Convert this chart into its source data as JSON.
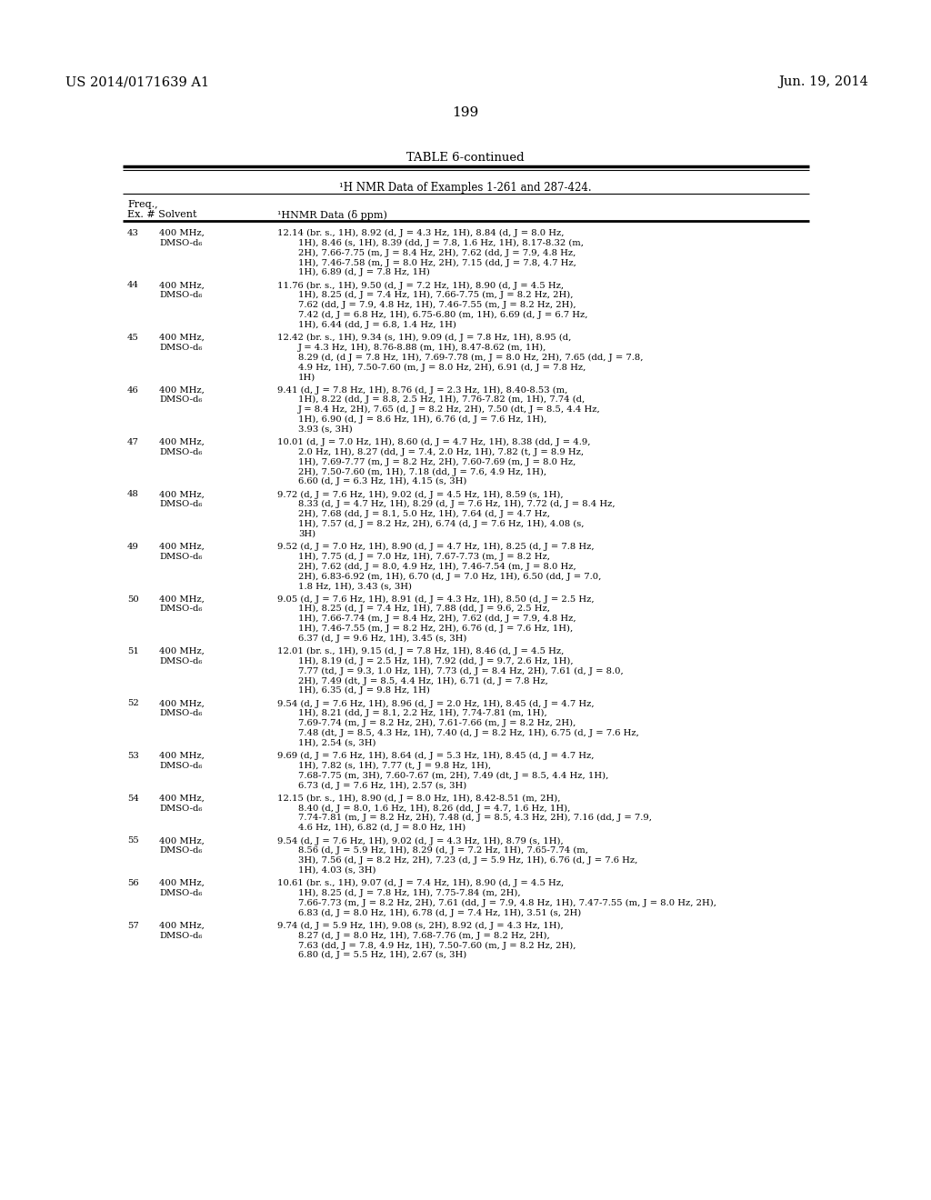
{
  "page_number": "199",
  "patent_number": "US 2014/0171639 A1",
  "patent_date": "Jun. 19, 2014",
  "table_title": "TABLE 6-continued",
  "table_subtitle": "¹H NMR Data of Examples 1-261 and 287-424.",
  "col2_header": "¹HNMR Data (δ ppm)",
  "background_color": "#ffffff",
  "text_color": "#000000",
  "entries": [
    {
      "ex": "43",
      "freq": "400 MHz,",
      "solvent": "DMSO-d₆",
      "line1": "12.14 (br. s., 1H), 8.92 (d, J = 4.3 Hz, 1H), 8.84 (d, J = 8.0 Hz,",
      "lines": [
        "1H), 8.46 (s, 1H), 8.39 (dd, J = 7.8, 1.6 Hz, 1H), 8.17-8.32 (m,",
        "2H), 7.66-7.75 (m, J = 8.4 Hz, 2H), 7.62 (dd, J = 7.9, 4.8 Hz,",
        "1H), 7.46-7.58 (m, J = 8.0 Hz, 2H), 7.15 (dd, J = 7.8, 4.7 Hz,",
        "1H), 6.89 (d, J = 7.8 Hz, 1H)"
      ]
    },
    {
      "ex": "44",
      "freq": "400 MHz,",
      "solvent": "DMSO-d₆",
      "line1": "11.76 (br. s., 1H), 9.50 (d, J = 7.2 Hz, 1H), 8.90 (d, J = 4.5 Hz,",
      "lines": [
        "1H), 8.25 (d, J = 7.4 Hz, 1H), 7.66-7.75 (m, J = 8.2 Hz, 2H),",
        "7.62 (dd, J = 7.9, 4.8 Hz, 1H), 7.46-7.55 (m, J = 8.2 Hz, 2H),",
        "7.42 (d, J = 6.8 Hz, 1H), 6.75-6.80 (m, 1H), 6.69 (d, J = 6.7 Hz,",
        "1H), 6.44 (dd, J = 6.8, 1.4 Hz, 1H)"
      ]
    },
    {
      "ex": "45",
      "freq": "400 MHz,",
      "solvent": "DMSO-d₆",
      "line1": "12.42 (br. s., 1H), 9.34 (s, 1H), 9.09 (d, J = 7.8 Hz, 1H), 8.95 (d,",
      "lines": [
        "J = 4.3 Hz, 1H), 8.76-8.88 (m, 1H), 8.47-8.62 (m, 1H),",
        "8.29 (d, (d J = 7.8 Hz, 1H), 7.69-7.78 (m, J = 8.0 Hz, 2H), 7.65 (dd, J = 7.8,",
        "4.9 Hz, 1H), 7.50-7.60 (m, J = 8.0 Hz, 2H), 6.91 (d, J = 7.8 Hz,",
        "1H)"
      ]
    },
    {
      "ex": "46",
      "freq": "400 MHz,",
      "solvent": "DMSO-d₆",
      "line1": "9.41 (d, J = 7.8 Hz, 1H), 8.76 (d, J = 2.3 Hz, 1H), 8.40-8.53 (m,",
      "lines": [
        "1H), 8.22 (dd, J = 8.8, 2.5 Hz, 1H), 7.76-7.82 (m, 1H), 7.74 (d,",
        "J = 8.4 Hz, 2H), 7.65 (d, J = 8.2 Hz, 2H), 7.50 (dt, J = 8.5, 4.4 Hz,",
        "1H), 6.90 (d, J = 8.6 Hz, 1H), 6.76 (d, J = 7.6 Hz, 1H),",
        "3.93 (s, 3H)"
      ]
    },
    {
      "ex": "47",
      "freq": "400 MHz,",
      "solvent": "DMSO-d₆",
      "line1": "10.01 (d, J = 7.0 Hz, 1H), 8.60 (d, J = 4.7 Hz, 1H), 8.38 (dd, J = 4.9,",
      "lines": [
        "2.0 Hz, 1H), 8.27 (dd, J = 7.4, 2.0 Hz, 1H), 7.82 (t, J = 8.9 Hz,",
        "1H), 7.69-7.77 (m, J = 8.2 Hz, 2H), 7.60-7.69 (m, J = 8.0 Hz,",
        "2H), 7.50-7.60 (m, 1H), 7.18 (dd, J = 7.6, 4.9 Hz, 1H),",
        "6.60 (d, J = 6.3 Hz, 1H), 4.15 (s, 3H)"
      ]
    },
    {
      "ex": "48",
      "freq": "400 MHz,",
      "solvent": "DMSO-d₆",
      "line1": "9.72 (d, J = 7.6 Hz, 1H), 9.02 (d, J = 4.5 Hz, 1H), 8.59 (s, 1H),",
      "lines": [
        "8.33 (d, J = 4.7 Hz, 1H), 8.29 (d, J = 7.6 Hz, 1H), 7.72 (d, J = 8.4 Hz,",
        "2H), 7.68 (dd, J = 8.1, 5.0 Hz, 1H), 7.64 (d, J = 4.7 Hz,",
        "1H), 7.57 (d, J = 8.2 Hz, 2H), 6.74 (d, J = 7.6 Hz, 1H), 4.08 (s,",
        "3H)"
      ]
    },
    {
      "ex": "49",
      "freq": "400 MHz,",
      "solvent": "DMSO-d₆",
      "line1": "9.52 (d, J = 7.0 Hz, 1H), 8.90 (d, J = 4.7 Hz, 1H), 8.25 (d, J = 7.8 Hz,",
      "lines": [
        "1H), 7.75 (d, J = 7.0 Hz, 1H), 7.67-7.73 (m, J = 8.2 Hz,",
        "2H), 7.62 (dd, J = 8.0, 4.9 Hz, 1H), 7.46-7.54 (m, J = 8.0 Hz,",
        "2H), 6.83-6.92 (m, 1H), 6.70 (d, J = 7.0 Hz, 1H), 6.50 (dd, J = 7.0,",
        "1.8 Hz, 1H), 3.43 (s, 3H)"
      ]
    },
    {
      "ex": "50",
      "freq": "400 MHz,",
      "solvent": "DMSO-d₆",
      "line1": "9.05 (d, J = 7.6 Hz, 1H), 8.91 (d, J = 4.3 Hz, 1H), 8.50 (d, J = 2.5 Hz,",
      "lines": [
        "1H), 8.25 (d, J = 7.4 Hz, 1H), 7.88 (dd, J = 9.6, 2.5 Hz,",
        "1H), 7.66-7.74 (m, J = 8.4 Hz, 2H), 7.62 (dd, J = 7.9, 4.8 Hz,",
        "1H), 7.46-7.55 (m, J = 8.2 Hz, 2H), 6.76 (d, J = 7.6 Hz, 1H),",
        "6.37 (d, J = 9.6 Hz, 1H), 3.45 (s, 3H)"
      ]
    },
    {
      "ex": "51",
      "freq": "400 MHz,",
      "solvent": "DMSO-d₆",
      "line1": "12.01 (br. s., 1H), 9.15 (d, J = 7.8 Hz, 1H), 8.46 (d, J = 4.5 Hz,",
      "lines": [
        "1H), 8.19 (d, J = 2.5 Hz, 1H), 7.92 (dd, J = 9.7, 2.6 Hz, 1H),",
        "7.77 (td, J = 9.3, 1.0 Hz, 1H), 7.73 (d, J = 8.4 Hz, 2H), 7.61 (d, J = 8.0,",
        "2H), 7.49 (dt, J = 8.5, 4.4 Hz, 1H), 6.71 (d, J = 7.8 Hz,",
        "1H), 6.35 (d, J = 9.8 Hz, 1H)"
      ]
    },
    {
      "ex": "52",
      "freq": "400 MHz,",
      "solvent": "DMSO-d₆",
      "line1": "9.54 (d, J = 7.6 Hz, 1H), 8.96 (d, J = 2.0 Hz, 1H), 8.45 (d, J = 4.7 Hz,",
      "lines": [
        "1H), 8.21 (dd, J = 8.1, 2.2 Hz, 1H), 7.74-7.81 (m, 1H),",
        "7.69-7.74 (m, J = 8.2 Hz, 2H), 7.61-7.66 (m, J = 8.2 Hz, 2H),",
        "7.48 (dt, J = 8.5, 4.3 Hz, 1H), 7.40 (d, J = 8.2 Hz, 1H), 6.75 (d, J = 7.6 Hz,",
        "1H), 2.54 (s, 3H)"
      ]
    },
    {
      "ex": "53",
      "freq": "400 MHz,",
      "solvent": "DMSO-d₆",
      "line1": "9.69 (d, J = 7.6 Hz, 1H), 8.64 (d, J = 5.3 Hz, 1H), 8.45 (d, J = 4.7 Hz,",
      "lines": [
        "1H), 7.82 (s, 1H), 7.77 (t, J = 9.8 Hz, 1H),",
        "7.68-7.75 (m, 3H), 7.60-7.67 (m, 2H), 7.49 (dt, J = 8.5, 4.4 Hz, 1H),",
        "6.73 (d, J = 7.6 Hz, 1H), 2.57 (s, 3H)"
      ]
    },
    {
      "ex": "54",
      "freq": "400 MHz,",
      "solvent": "DMSO-d₆",
      "line1": "12.15 (br. s., 1H), 8.90 (d, J = 8.0 Hz, 1H), 8.42-8.51 (m, 2H),",
      "lines": [
        "8.40 (d, J = 8.0, 1.6 Hz, 1H), 8.26 (dd, J = 4.7, 1.6 Hz, 1H),",
        "7.74-7.81 (m, J = 8.2 Hz, 2H), 7.48 (d, J = 8.5, 4.3 Hz, 2H), 7.16 (dd, J = 7.9,",
        "4.6 Hz, 1H), 6.82 (d, J = 8.0 Hz, 1H)"
      ]
    },
    {
      "ex": "55",
      "freq": "400 MHz,",
      "solvent": "DMSO-d₆",
      "line1": "9.54 (d, J = 7.6 Hz, 1H), 9.02 (d, J = 4.3 Hz, 1H), 8.79 (s, 1H),",
      "lines": [
        "8.56 (d, J = 5.9 Hz, 1H), 8.29 (d, J = 7.2 Hz, 1H), 7.65-7.74 (m,",
        "3H), 7.56 (d, J = 8.2 Hz, 2H), 7.23 (d, J = 5.9 Hz, 1H), 6.76 (d, J = 7.6 Hz,",
        "1H), 4.03 (s, 3H)"
      ]
    },
    {
      "ex": "56",
      "freq": "400 MHz,",
      "solvent": "DMSO-d₆",
      "line1": "10.61 (br. s., 1H), 9.07 (d, J = 7.4 Hz, 1H), 8.90 (d, J = 4.5 Hz,",
      "lines": [
        "1H), 8.25 (d, J = 7.8 Hz, 1H), 7.75-7.84 (m, 2H),",
        "7.66-7.73 (m, J = 8.2 Hz, 2H), 7.61 (dd, J = 7.9, 4.8 Hz, 1H), 7.47-7.55 (m, J = 8.0 Hz, 2H),",
        "6.83 (d, J = 8.0 Hz, 1H), 6.78 (d, J = 7.4 Hz, 1H), 3.51 (s, 2H)"
      ]
    },
    {
      "ex": "57",
      "freq": "400 MHz,",
      "solvent": "DMSO-d₆",
      "line1": "9.74 (d, J = 5.9 Hz, 1H), 9.08 (s, 2H), 8.92 (d, J = 4.3 Hz, 1H),",
      "lines": [
        "8.27 (d, J = 8.0 Hz, 1H), 7.68-7.76 (m, J = 8.2 Hz, 2H),",
        "7.63 (dd, J = 7.8, 4.9 Hz, 1H), 7.50-7.60 (m, J = 8.2 Hz, 2H),",
        "6.80 (d, J = 5.5 Hz, 1H), 2.67 (s, 3H)"
      ]
    }
  ]
}
